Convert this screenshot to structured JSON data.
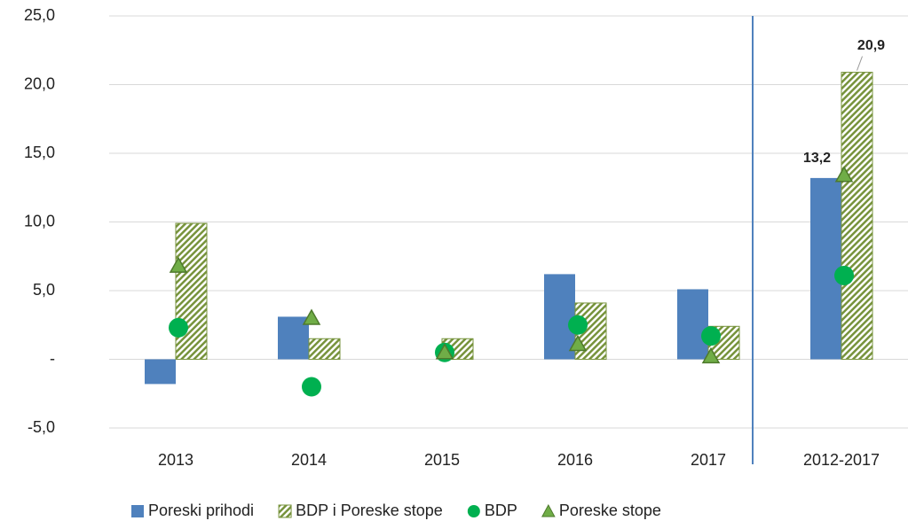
{
  "chart_data": {
    "type": "bar",
    "categories": [
      "2013",
      "2014",
      "2015",
      "2016",
      "2017",
      "2012-2017"
    ],
    "series": [
      {
        "name": "Poreski prihodi",
        "color": "#4f81bd",
        "values": [
          -1.8,
          3.1,
          0,
          6.2,
          5.1,
          13.2
        ],
        "value_labels": [
          null,
          null,
          null,
          null,
          null,
          "13,2"
        ]
      },
      {
        "name": "BDP i Poreske stope",
        "color": "#77933c",
        "pattern": "hatch",
        "values": [
          9.9,
          1.5,
          1.5,
          4.1,
          2.4,
          20.9
        ],
        "value_labels": [
          null,
          null,
          null,
          null,
          null,
          "20,9"
        ]
      },
      {
        "name": "BDP",
        "color": "#00b050",
        "marker": "circle",
        "values": [
          2.3,
          -2.0,
          0.5,
          2.5,
          1.7,
          6.1
        ]
      },
      {
        "name": "Poreske stope",
        "color": "#70ad47",
        "marker": "triangle",
        "values": [
          6.8,
          3.0,
          0.5,
          1.1,
          0.2,
          13.4
        ]
      }
    ],
    "ylim": [
      -5,
      25
    ],
    "yticks": [
      {
        "value": -5,
        "label": "-5,0"
      },
      {
        "value": 0,
        "label": "-"
      },
      {
        "value": 5,
        "label": "5,0"
      },
      {
        "value": 10,
        "label": "10,0"
      },
      {
        "value": 15,
        "label": "15,0"
      },
      {
        "value": 20,
        "label": "20,0"
      },
      {
        "value": 25,
        "label": "25,0"
      }
    ],
    "grid": true,
    "legend": "bottom"
  }
}
